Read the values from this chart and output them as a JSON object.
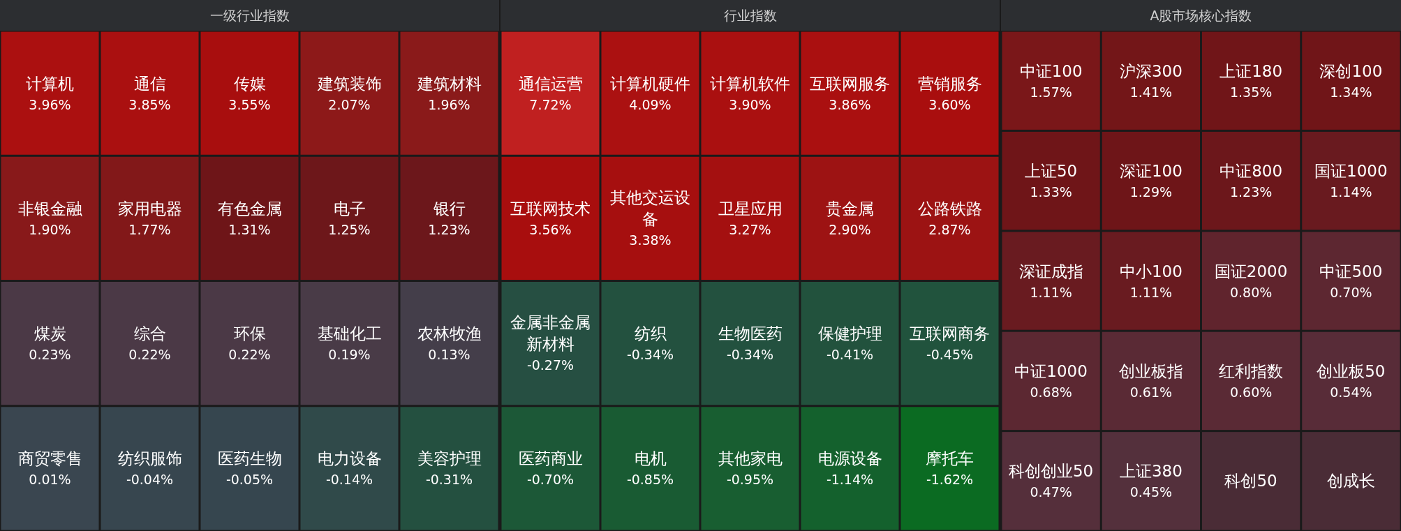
{
  "chart_data": [
    {
      "type": "other",
      "title": "一级行业指数",
      "categories": [
        "计算机",
        "通信",
        "传媒",
        "建筑装饰",
        "建筑材料",
        "非银金融",
        "家用电器",
        "有色金属",
        "电子",
        "银行",
        "煤炭",
        "综合",
        "环保",
        "基础化工",
        "农林牧渔",
        "商贸零售",
        "纺织服饰",
        "医药生物",
        "电力设备",
        "美容护理"
      ],
      "values": [
        3.96,
        3.85,
        3.55,
        2.07,
        1.96,
        1.9,
        1.77,
        1.31,
        1.25,
        1.23,
        0.23,
        0.22,
        0.22,
        0.19,
        0.13,
        0.01,
        -0.04,
        -0.05,
        -0.14,
        -0.31
      ],
      "value_labels": [
        "3.96%",
        "3.85%",
        "3.55%",
        "2.07%",
        "1.96%",
        "1.90%",
        "1.77%",
        "1.31%",
        "1.25%",
        "1.23%",
        "0.23%",
        "0.22%",
        "0.22%",
        "0.19%",
        "0.13%",
        "0.01%",
        "-0.04%",
        "-0.05%",
        "-0.14%",
        "-0.31%"
      ]
    },
    {
      "type": "other",
      "title": "行业指数",
      "categories": [
        "通信运营",
        "计算机硬件",
        "计算机软件",
        "互联网服务",
        "营销服务",
        "互联网技术",
        "其他交运设备",
        "卫星应用",
        "贵金属",
        "公路铁路",
        "金属非金属新材料",
        "纺织",
        "生物医药",
        "保健护理",
        "互联网商务",
        "医药商业",
        "电机",
        "其他家电",
        "电源设备",
        "摩托车"
      ],
      "values": [
        7.72,
        4.09,
        3.9,
        3.86,
        3.6,
        3.56,
        3.38,
        3.27,
        2.9,
        2.87,
        -0.27,
        -0.34,
        -0.34,
        -0.41,
        -0.45,
        -0.7,
        -0.85,
        -0.95,
        -1.14,
        -1.62
      ],
      "value_labels": [
        "7.72%",
        "4.09%",
        "3.90%",
        "3.86%",
        "3.60%",
        "3.56%",
        "3.38%",
        "3.27%",
        "2.90%",
        "2.87%",
        "-0.27%",
        "-0.34%",
        "-0.34%",
        "-0.41%",
        "-0.45%",
        "-0.70%",
        "-0.85%",
        "-0.95%",
        "-1.14%",
        "-1.62%"
      ]
    },
    {
      "type": "other",
      "title": "A股市场核心指数",
      "categories": [
        "中证100",
        "沪深300",
        "上证180",
        "深创100",
        "上证50",
        "深证100",
        "中证800",
        "国证1000",
        "深证成指",
        "中小100",
        "国证2000",
        "中证500",
        "中证1000",
        "创业板指",
        "红利指数",
        "创业板50",
        "科创创业50",
        "上证380",
        "科创50",
        "创成长"
      ],
      "values": [
        1.57,
        1.41,
        1.35,
        1.34,
        1.33,
        1.29,
        1.23,
        1.14,
        1.11,
        1.11,
        0.8,
        0.7,
        0.68,
        0.61,
        0.6,
        0.54,
        0.47,
        0.45,
        null,
        null
      ],
      "value_labels": [
        "1.57%",
        "1.41%",
        "1.35%",
        "1.34%",
        "1.33%",
        "1.29%",
        "1.23%",
        "1.14%",
        "1.11%",
        "1.11%",
        "0.80%",
        "0.70%",
        "0.68%",
        "0.61%",
        "0.60%",
        "0.54%",
        "0.47%",
        "0.45%",
        null,
        null
      ]
    }
  ]
}
